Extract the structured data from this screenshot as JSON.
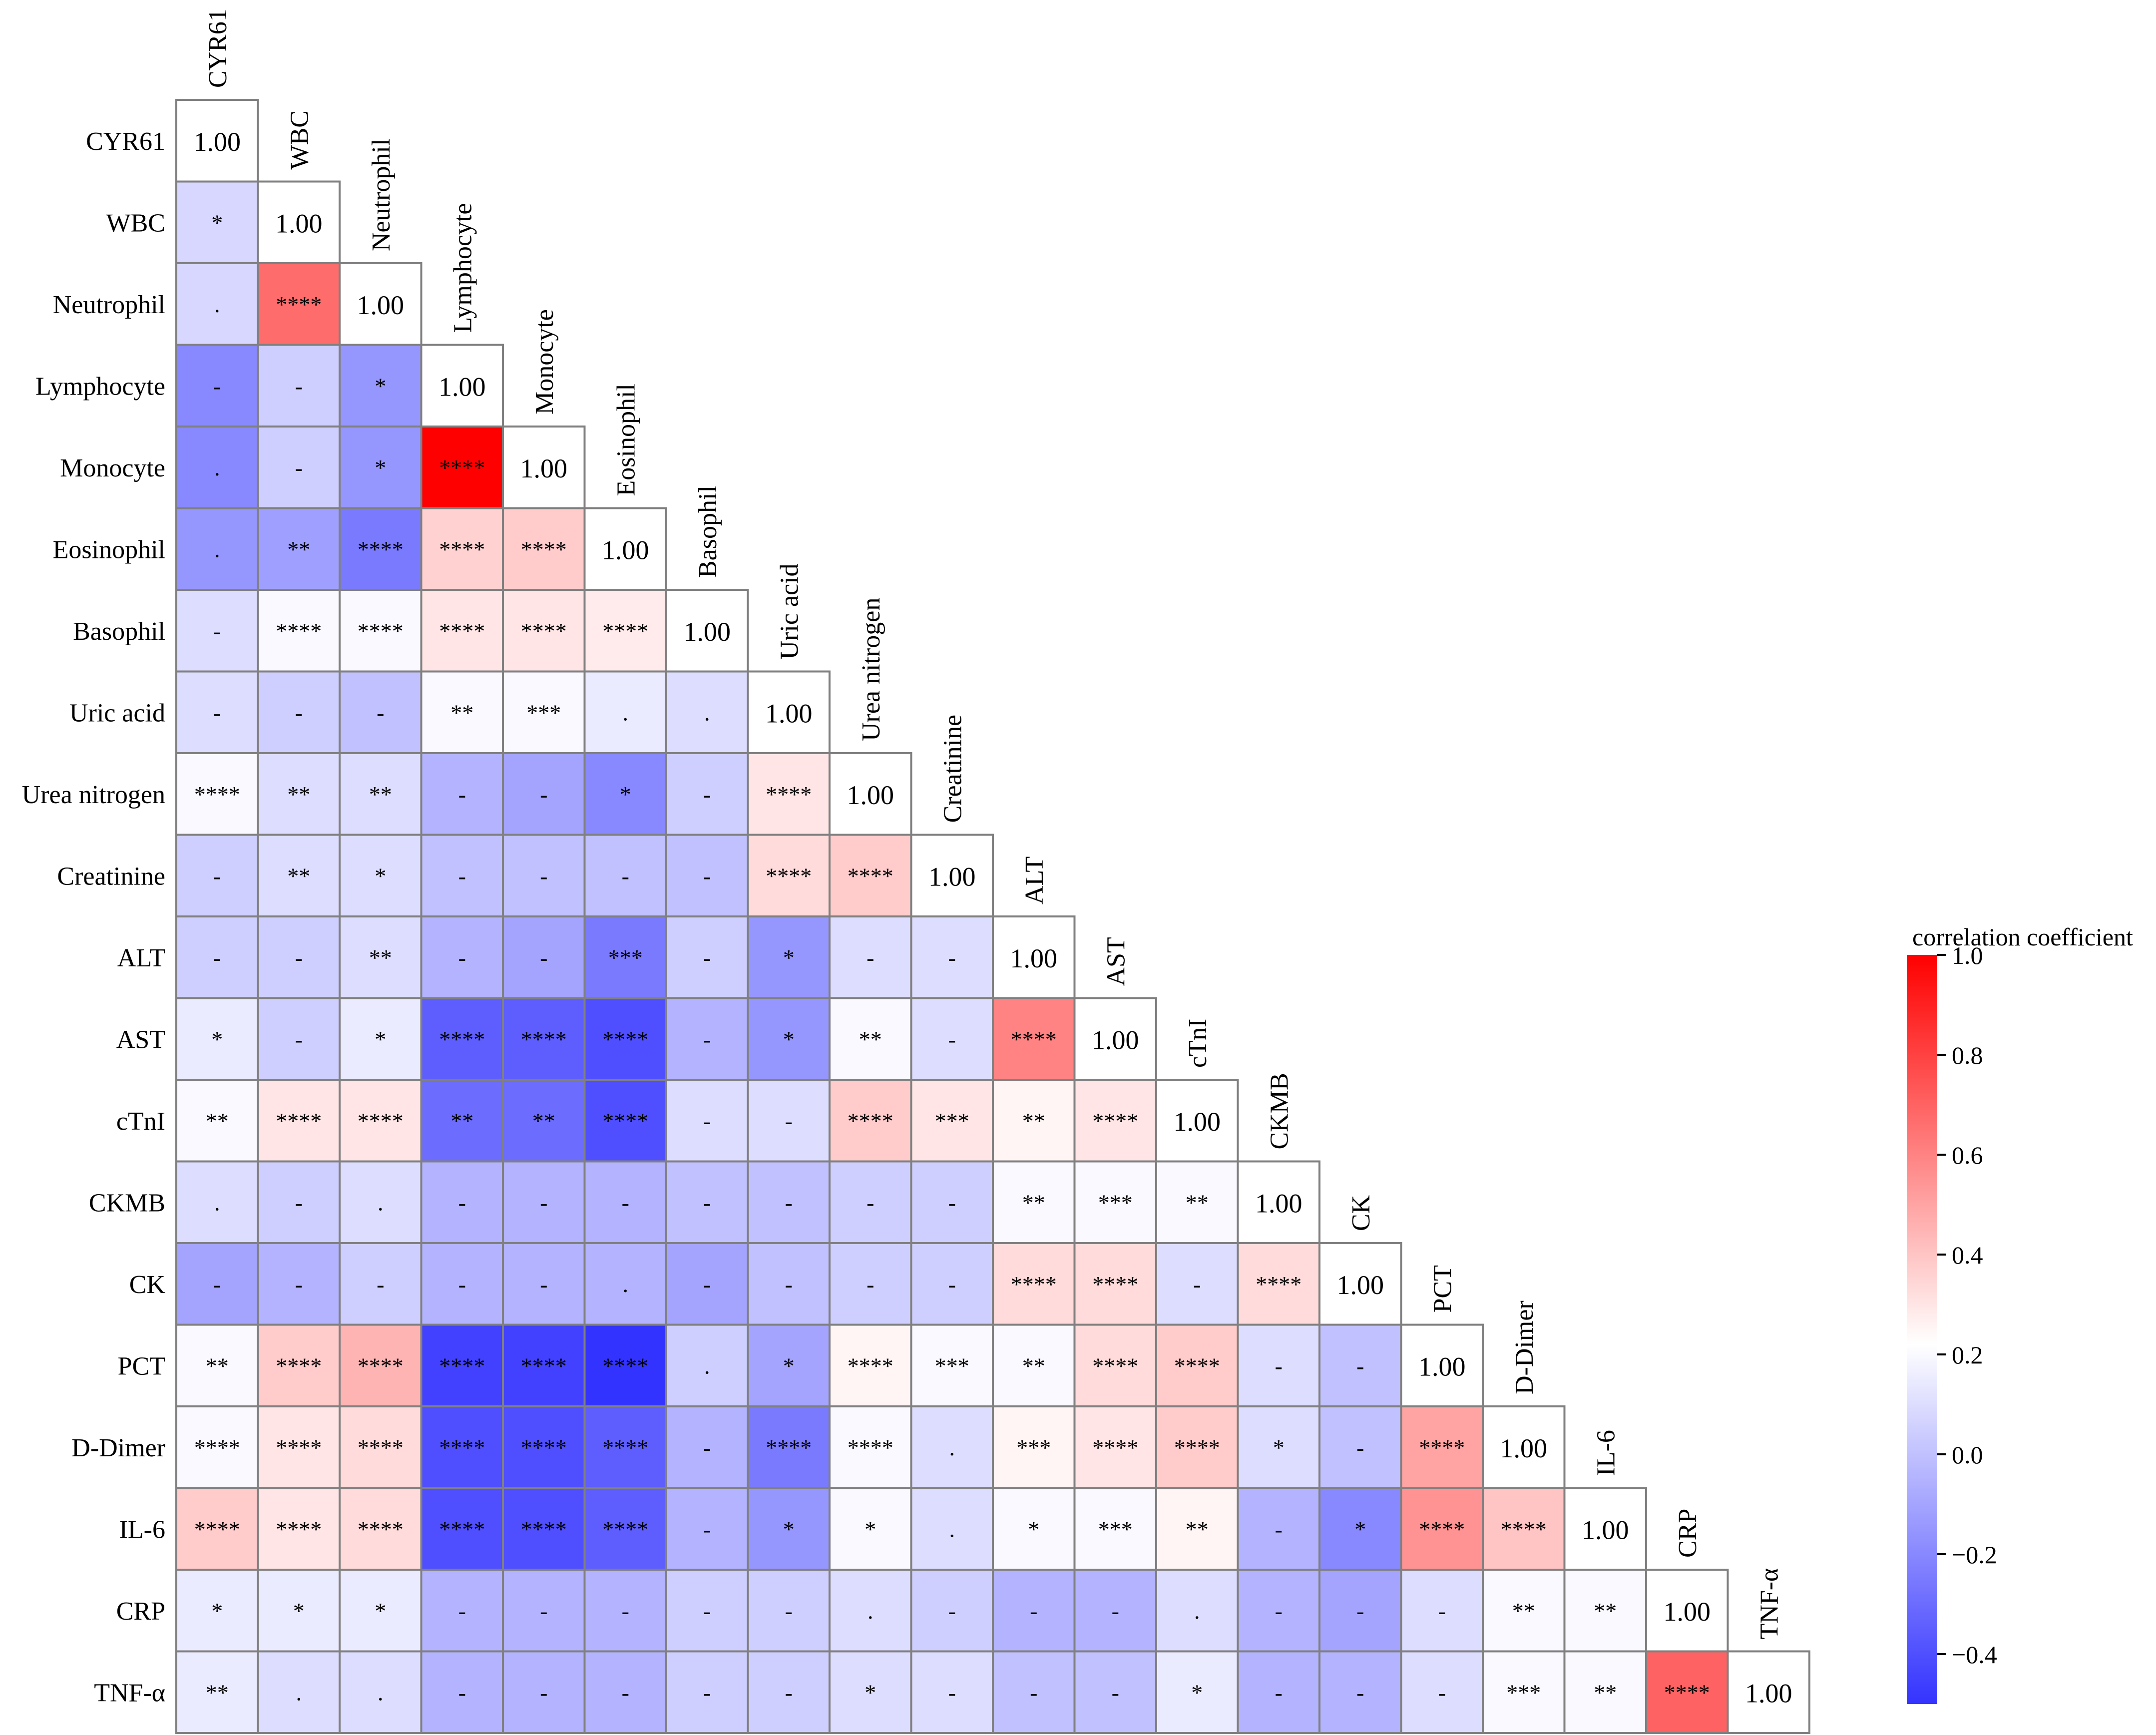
{
  "chart_data": {
    "type": "heatmap",
    "title": "",
    "variables": [
      "CYR61",
      "WBC",
      "Neutrophil",
      "Lymphocyte",
      "Monocyte",
      "Eosinophil",
      "Basophil",
      "Uric acid",
      "Urea nitrogen",
      "Creatinine",
      "ALT",
      "AST",
      "cTnI",
      "CKMB",
      "CK",
      "PCT",
      "D-Dimer",
      "IL-6",
      "CRP",
      "TNF-α"
    ],
    "diagonal_label": "1.00",
    "colorbar": {
      "title": "correlation coefficient",
      "range": [
        -0.5,
        1.0
      ],
      "ticks": [
        1.0,
        0.8,
        0.6,
        0.4,
        0.2,
        0.0,
        -0.2,
        -0.4
      ],
      "tick_labels": [
        "1.0",
        "0.8",
        "0.6",
        "0.4",
        "0.2",
        "0.0",
        "−0.2",
        "−0.4"
      ],
      "colors": {
        "low": "#3333ff",
        "mid": "#ffffff",
        "mid_value": 0.22,
        "high": "#ff0000"
      }
    },
    "matrix": [
      [
        1.0
      ],
      [
        0.08,
        1.0
      ],
      [
        0.08,
        0.67,
        1.0
      ],
      [
        -0.2,
        0.05,
        -0.15,
        1.0
      ],
      [
        -0.2,
        0.05,
        -0.15,
        1.0,
        1.0
      ],
      [
        -0.15,
        -0.12,
        -0.25,
        0.36,
        0.38,
        1.0
      ],
      [
        0.1,
        0.2,
        0.2,
        0.3,
        0.3,
        0.28,
        1.0
      ],
      [
        0.1,
        0.05,
        0.0,
        0.2,
        0.2,
        0.15,
        0.1,
        1.0
      ],
      [
        0.2,
        0.1,
        0.1,
        -0.05,
        -0.1,
        -0.2,
        0.05,
        0.3,
        1.0
      ],
      [
        0.05,
        0.1,
        0.1,
        0.0,
        0.0,
        0.0,
        0.0,
        0.33,
        0.38,
        1.0
      ],
      [
        0.05,
        0.05,
        0.1,
        -0.05,
        -0.1,
        -0.25,
        0.05,
        -0.15,
        0.1,
        0.1,
        1.0
      ],
      [
        0.15,
        0.05,
        0.15,
        -0.35,
        -0.35,
        -0.4,
        -0.05,
        -0.15,
        0.2,
        0.1,
        0.6,
        1.0
      ],
      [
        0.2,
        0.3,
        0.3,
        -0.3,
        -0.3,
        -0.4,
        0.1,
        0.1,
        0.38,
        0.3,
        0.25,
        0.3,
        1.0
      ],
      [
        0.1,
        0.05,
        0.1,
        -0.05,
        -0.05,
        -0.05,
        0.0,
        0.0,
        0.05,
        0.05,
        0.2,
        0.2,
        0.2,
        1.0
      ],
      [
        -0.1,
        -0.05,
        0.05,
        -0.05,
        -0.05,
        -0.05,
        -0.1,
        0.0,
        0.05,
        0.05,
        0.33,
        0.33,
        0.1,
        0.33,
        1.0
      ],
      [
        0.2,
        0.38,
        0.45,
        -0.45,
        -0.45,
        -0.55,
        0.05,
        -0.1,
        0.25,
        0.2,
        0.2,
        0.33,
        0.38,
        0.1,
        0.0,
        1.0
      ],
      [
        0.2,
        0.3,
        0.33,
        -0.4,
        -0.4,
        -0.35,
        -0.05,
        -0.25,
        0.2,
        0.1,
        0.25,
        0.3,
        0.38,
        0.1,
        0.0,
        0.5,
        1.0
      ],
      [
        0.38,
        0.3,
        0.33,
        -0.4,
        -0.4,
        -0.35,
        -0.05,
        -0.15,
        0.2,
        0.1,
        0.2,
        0.2,
        0.25,
        -0.05,
        -0.2,
        0.55,
        0.4,
        1.0
      ],
      [
        0.15,
        0.15,
        0.15,
        -0.05,
        -0.05,
        -0.05,
        0.05,
        0.05,
        0.1,
        0.05,
        -0.05,
        -0.05,
        0.1,
        -0.05,
        -0.1,
        0.1,
        0.2,
        0.2,
        1.0
      ],
      [
        0.15,
        0.1,
        0.1,
        -0.05,
        -0.05,
        -0.05,
        0.05,
        0.05,
        0.1,
        0.1,
        0.0,
        0.0,
        0.15,
        -0.05,
        -0.05,
        0.1,
        0.2,
        0.2,
        0.7,
        1.0
      ]
    ],
    "annotations": [
      [
        "1.00"
      ],
      [
        "*",
        "1.00"
      ],
      [
        ".",
        "****",
        "1.00"
      ],
      [
        "-",
        "-",
        "*",
        "1.00"
      ],
      [
        ".",
        "-",
        "*",
        "****",
        "1.00"
      ],
      [
        ".",
        "**",
        "****",
        "****",
        "****",
        "1.00"
      ],
      [
        "-",
        "****",
        "****",
        "****",
        "****",
        "****",
        "1.00"
      ],
      [
        "-",
        "-",
        "-",
        "**",
        "***",
        ".",
        ".",
        "1.00"
      ],
      [
        "****",
        "**",
        "**",
        "-",
        "-",
        "*",
        "-",
        "****",
        "1.00"
      ],
      [
        "-",
        "**",
        "*",
        "-",
        "-",
        "-",
        "-",
        "****",
        "****",
        "1.00"
      ],
      [
        "-",
        "-",
        "**",
        "-",
        "-",
        "***",
        "-",
        "*",
        "-",
        "-",
        "1.00"
      ],
      [
        "*",
        "-",
        "*",
        "****",
        "****",
        "****",
        "-",
        "*",
        "**",
        "-",
        "****",
        "1.00"
      ],
      [
        "**",
        "****",
        "****",
        "**",
        "**",
        "****",
        "-",
        "-",
        "****",
        "***",
        "**",
        "****",
        "1.00"
      ],
      [
        ".",
        "-",
        ".",
        "-",
        "-",
        "-",
        "-",
        "-",
        "-",
        "-",
        "**",
        "***",
        "**",
        "1.00"
      ],
      [
        "-",
        "-",
        "-",
        "-",
        "-",
        ".",
        "-",
        "-",
        "-",
        "-",
        "****",
        "****",
        "-",
        "****",
        "1.00"
      ],
      [
        "**",
        "****",
        "****",
        "****",
        "****",
        "****",
        ".",
        "*",
        "****",
        "***",
        "**",
        "****",
        "****",
        "-",
        "-",
        "1.00"
      ],
      [
        "****",
        "****",
        "****",
        "****",
        "****",
        "****",
        "-",
        "****",
        "****",
        ".",
        "***",
        "****",
        "****",
        "*",
        "-",
        "****",
        "1.00"
      ],
      [
        "****",
        "****",
        "****",
        "****",
        "****",
        "****",
        "-",
        "*",
        "*",
        ".",
        "*",
        "***",
        "**",
        "-",
        "*",
        "****",
        "****",
        "1.00"
      ],
      [
        "*",
        "*",
        "*",
        "-",
        "-",
        "-",
        "-",
        "-",
        ".",
        "-",
        "-",
        "-",
        ".",
        "-",
        "-",
        "-",
        "**",
        "**",
        "1.00"
      ],
      [
        "**",
        ".",
        ".",
        "-",
        "-",
        "-",
        "-",
        "-",
        "*",
        "-",
        "-",
        "-",
        "*",
        "-",
        "-",
        "-",
        "***",
        "**",
        "****",
        "1.00"
      ]
    ]
  }
}
